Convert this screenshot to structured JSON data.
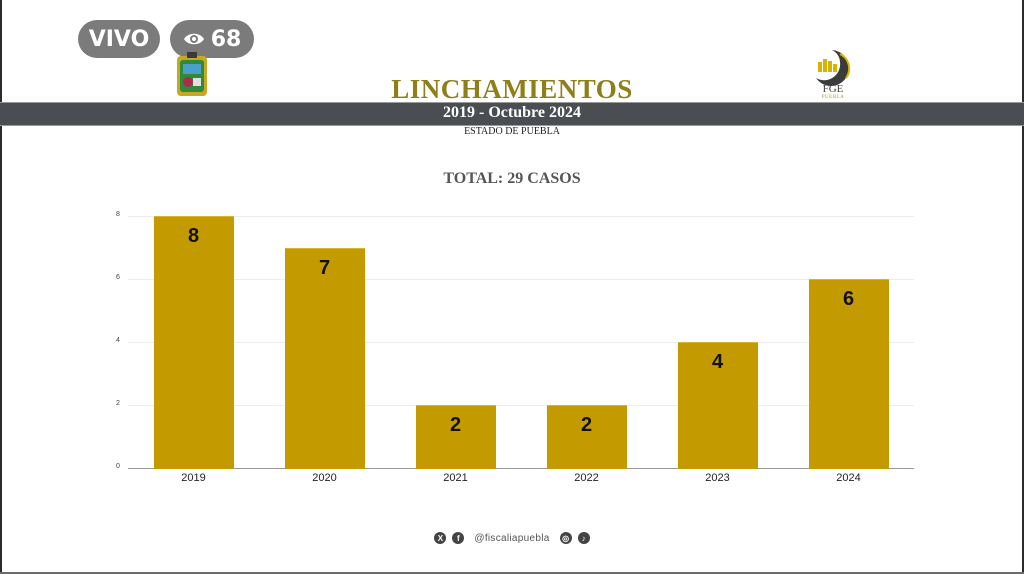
{
  "stream": {
    "live_label": "VIVO",
    "viewer_count": "68",
    "viewer_icon": "eye-icon"
  },
  "header": {
    "title": "LINCHAMIENTOS",
    "period": "2019 - Octubre 2024",
    "region": "ESTADO DE PUEBLA",
    "logo_left": "puebla-coat-of-arms",
    "logo_right_text": "FGE",
    "logo_right_subtext": "PUEBLA"
  },
  "summary": {
    "total_label": "TOTAL: 29 CASOS"
  },
  "colors": {
    "bar": "#c39b00",
    "title": "#8f7f1a",
    "band": "#4a4d52",
    "pill": "#7b7b7b"
  },
  "chart_data": {
    "type": "bar",
    "title": "TOTAL: 29 CASOS",
    "categories": [
      "2019",
      "2020",
      "2021",
      "2022",
      "2023",
      "2024"
    ],
    "values": [
      8,
      7,
      2,
      2,
      4,
      6
    ],
    "data_labels": [
      "8",
      "7",
      "2",
      "2",
      "4",
      "6"
    ],
    "xlabel": "",
    "ylabel": "",
    "ylim": [
      0,
      8
    ],
    "yticks": [
      "0",
      "2",
      "4",
      "6",
      "8"
    ],
    "grid": true,
    "legend": "none"
  },
  "footer": {
    "handle": "@fiscaliapuebla",
    "icons": [
      "x-icon",
      "facebook-icon",
      "instagram-icon",
      "tiktok-icon"
    ],
    "icon_glyphs": [
      "X",
      "f",
      "◎",
      "♪"
    ]
  }
}
